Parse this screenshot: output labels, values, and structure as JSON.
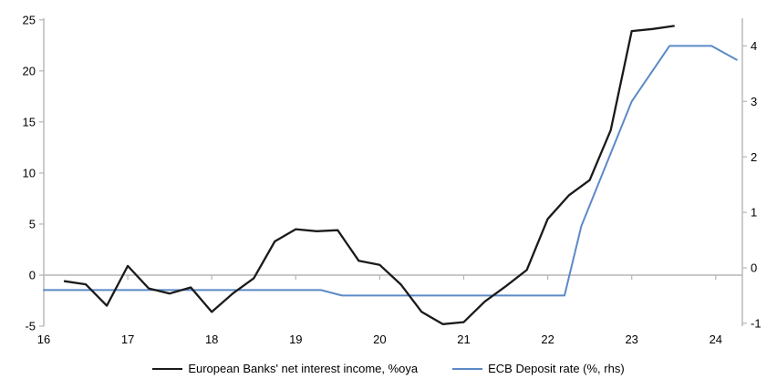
{
  "chart_data": {
    "type": "line",
    "title": "",
    "x_axis": {
      "tick_labels": [
        "16",
        "17",
        "18",
        "19",
        "20",
        "21",
        "22",
        "23",
        "24"
      ],
      "tick_values": [
        16,
        17,
        18,
        19,
        20,
        21,
        22,
        23,
        24
      ],
      "range": [
        16,
        24.35
      ]
    },
    "left_axis": {
      "tick_labels": [
        "25",
        "20",
        "15",
        "10",
        "5",
        "0",
        "-5"
      ],
      "tick_values": [
        25,
        20,
        15,
        10,
        5,
        0,
        -5
      ],
      "range": [
        -5,
        25
      ]
    },
    "right_axis": {
      "tick_labels": [
        "4",
        "3",
        "2",
        "1",
        "0",
        "-1"
      ],
      "tick_values": [
        4,
        3,
        2,
        1,
        0,
        -1
      ],
      "range": [
        -1,
        4.3
      ]
    },
    "grid": "zero-line-only",
    "legend_position": "bottom-center",
    "series": [
      {
        "name": "European Banks' net interest income, %oya",
        "axis": "left",
        "color": "#1a1a1a",
        "x": [
          16.25,
          16.5,
          16.75,
          17.0,
          17.25,
          17.5,
          17.75,
          18.0,
          18.25,
          18.5,
          18.75,
          19.0,
          19.25,
          19.5,
          19.75,
          20.0,
          20.25,
          20.5,
          20.75,
          21.0,
          21.25,
          21.5,
          21.75,
          22.0,
          22.25,
          22.5,
          22.75,
          23.0,
          23.25,
          23.5
        ],
        "values": [
          -0.6,
          -0.9,
          -3.0,
          0.9,
          -1.3,
          -1.8,
          -1.2,
          -3.6,
          -1.8,
          -0.3,
          3.3,
          4.5,
          4.3,
          4.4,
          1.4,
          1.0,
          -0.9,
          -3.6,
          -4.8,
          -4.6,
          -2.6,
          -1.1,
          0.5,
          5.5,
          7.8,
          9.3,
          14.2,
          23.9,
          24.1,
          24.4
        ]
      },
      {
        "name": "ECB Deposit rate (%, rhs)",
        "axis": "right",
        "color": "#5b8ac6",
        "x": [
          16.0,
          19.3,
          19.55,
          22.2,
          22.4,
          23.0,
          23.45,
          23.95,
          24.25
        ],
        "values": [
          -0.4,
          -0.4,
          -0.5,
          -0.5,
          0.75,
          3.0,
          4.0,
          4.0,
          3.75
        ]
      }
    ]
  }
}
